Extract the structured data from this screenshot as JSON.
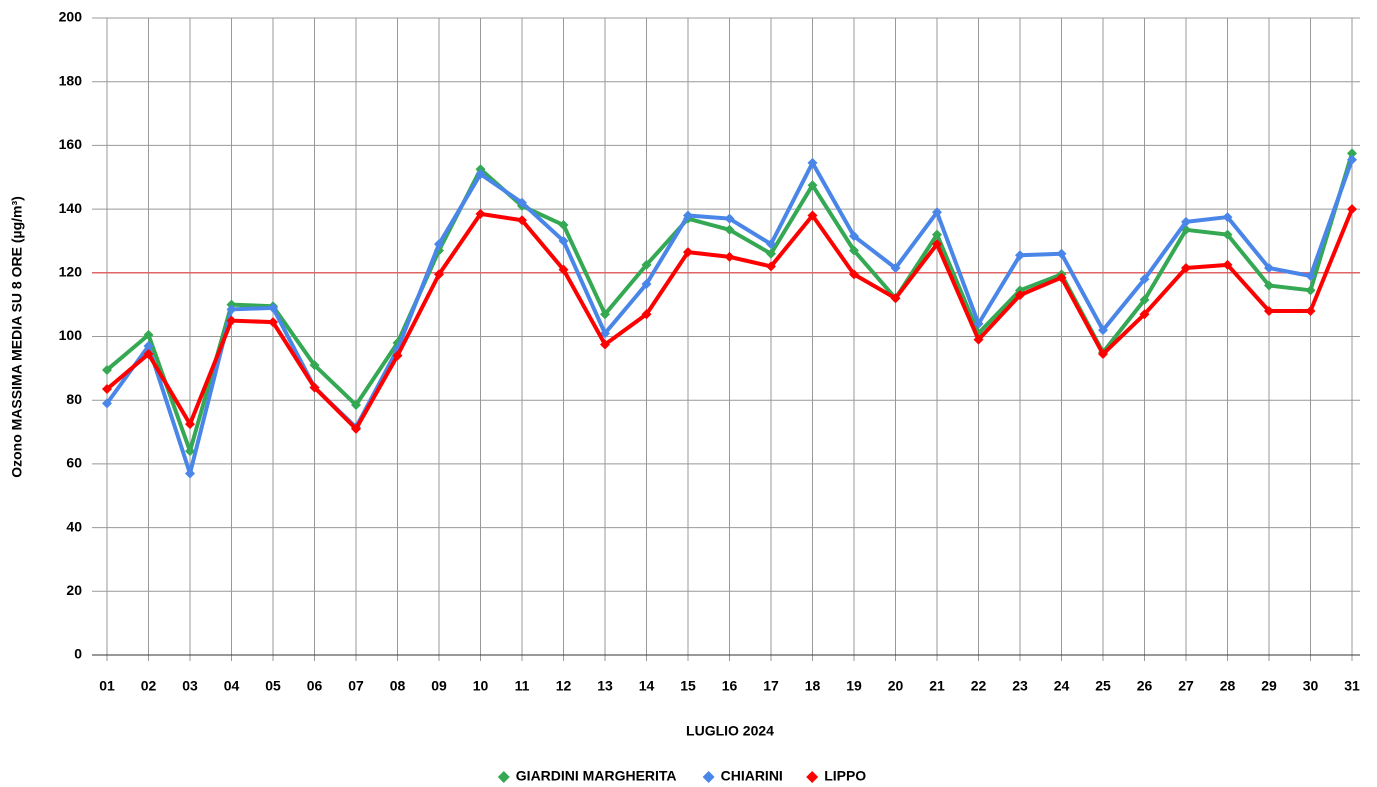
{
  "chart_data": {
    "type": "line",
    "x_label": "LUGLIO 2024",
    "y_label": "Ozono MASSIMA MEDIA SU 8 ORE (µg/m³)",
    "categories": [
      "01",
      "02",
      "03",
      "04",
      "05",
      "06",
      "07",
      "08",
      "09",
      "10",
      "11",
      "12",
      "13",
      "14",
      "15",
      "16",
      "17",
      "18",
      "19",
      "20",
      "21",
      "22",
      "23",
      "24",
      "25",
      "26",
      "27",
      "28",
      "29",
      "30",
      "31"
    ],
    "series": [
      {
        "name": "GIARDINI MARGHERITA",
        "color": "#34a853",
        "values": [
          89.5,
          100.5,
          64,
          110,
          109.5,
          91,
          78.5,
          98,
          127,
          152.5,
          141,
          135,
          107,
          122.5,
          137,
          133.5,
          126,
          147.5,
          127,
          112,
          132,
          101,
          114.5,
          119.5,
          95,
          111.5,
          133.5,
          132,
          116,
          114.5,
          157.5
        ]
      },
      {
        "name": "CHIARINI",
        "color": "#4a86e8",
        "values": [
          79,
          97,
          57,
          108.5,
          109,
          84,
          71.5,
          96,
          129,
          151,
          142,
          130,
          101,
          116.5,
          138,
          137,
          129,
          154.5,
          131.5,
          121.5,
          139,
          104,
          125.5,
          126,
          102,
          118,
          136,
          137.5,
          121.5,
          119,
          155.5
        ]
      },
      {
        "name": "LIPPO",
        "color": "#ff0000",
        "values": [
          83.5,
          94.5,
          72.5,
          105,
          104.5,
          84,
          71,
          94,
          119.5,
          138.5,
          136.5,
          121,
          97.5,
          107,
          126.5,
          125,
          122,
          138,
          119.5,
          112,
          129,
          99,
          113,
          118.5,
          94.5,
          107,
          121.5,
          122.5,
          108,
          108,
          140
        ]
      }
    ],
    "reference_line": {
      "value": 120,
      "color": "#e06666"
    },
    "ylim": [
      0,
      200
    ],
    "yticks": [
      0,
      20,
      40,
      60,
      80,
      100,
      120,
      140,
      160,
      180,
      200
    ],
    "grid": true,
    "legend": "bottom"
  }
}
